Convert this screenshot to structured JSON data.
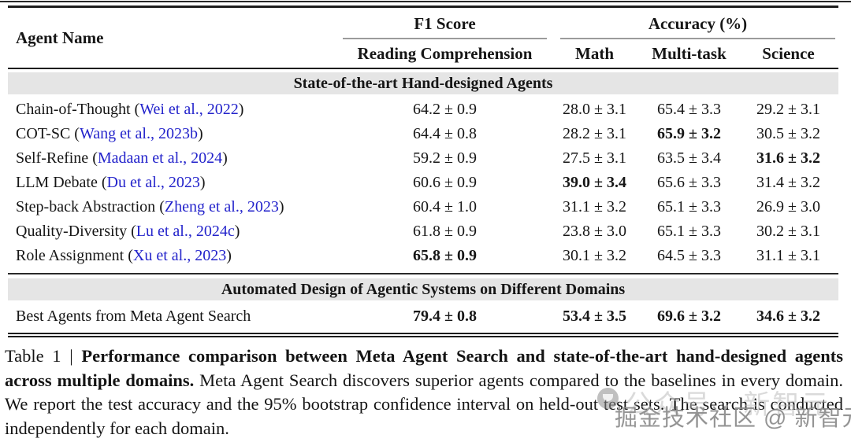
{
  "colors": {
    "citation_blue": "#2323cb",
    "section_band_gray": "#e5e5e5",
    "rule_dark": "#1d1d1d",
    "cmidrule_gray": "#9b9b9b",
    "watermark_light_gray": "#bdbdbd",
    "watermark_dark_gray": "#8c8c8c"
  },
  "table": {
    "agent_name_header": "Agent Name",
    "f1_group_header": "F1 Score",
    "accuracy_group_header": "Accuracy (%)",
    "sub_headers": {
      "reading_comprehension": "Reading Comprehension",
      "math": "Math",
      "multi_task": "Multi-task",
      "science": "Science"
    },
    "paren_open": " (",
    "paren_close": ")",
    "section1_title": "State-of-the-art Hand-designed Agents",
    "rows": [
      {
        "name": "Chain-of-Thought",
        "citation": "Wei et al., 2022",
        "cells": [
          {
            "v": "64.2 ± 0.9",
            "bold": false
          },
          {
            "v": "28.0 ± 3.1",
            "bold": false
          },
          {
            "v": "65.4 ± 3.3",
            "bold": false
          },
          {
            "v": "29.2 ± 3.1",
            "bold": false
          }
        ]
      },
      {
        "name": "COT-SC",
        "citation": "Wang et al., 2023b",
        "cells": [
          {
            "v": "64.4 ± 0.8",
            "bold": false
          },
          {
            "v": "28.2 ± 3.1",
            "bold": false
          },
          {
            "v": "65.9 ± 3.2",
            "bold": true
          },
          {
            "v": "30.5 ± 3.2",
            "bold": false
          }
        ]
      },
      {
        "name": "Self-Refine",
        "citation": "Madaan et al., 2024",
        "cells": [
          {
            "v": "59.2 ± 0.9",
            "bold": false
          },
          {
            "v": "27.5 ± 3.1",
            "bold": false
          },
          {
            "v": "63.5 ± 3.4",
            "bold": false
          },
          {
            "v": "31.6 ± 3.2",
            "bold": true
          }
        ]
      },
      {
        "name": "LLM Debate",
        "citation": "Du et al., 2023",
        "cells": [
          {
            "v": "60.6 ± 0.9",
            "bold": false
          },
          {
            "v": "39.0 ± 3.4",
            "bold": true
          },
          {
            "v": "65.6 ± 3.3",
            "bold": false
          },
          {
            "v": "31.4 ± 3.2",
            "bold": false
          }
        ]
      },
      {
        "name": "Step-back Abstraction",
        "citation": "Zheng et al., 2023",
        "cells": [
          {
            "v": "60.4 ± 1.0",
            "bold": false
          },
          {
            "v": "31.1 ± 3.2",
            "bold": false
          },
          {
            "v": "65.1 ± 3.3",
            "bold": false
          },
          {
            "v": "26.9 ± 3.0",
            "bold": false
          }
        ]
      },
      {
        "name": "Quality-Diversity",
        "citation": "Lu et al., 2024c",
        "cells": [
          {
            "v": "61.8 ± 0.9",
            "bold": false
          },
          {
            "v": "23.8 ± 3.0",
            "bold": false
          },
          {
            "v": "65.1 ± 3.3",
            "bold": false
          },
          {
            "v": "30.2 ± 3.1",
            "bold": false
          }
        ]
      },
      {
        "name": "Role Assignment",
        "citation": "Xu et al., 2023",
        "cells": [
          {
            "v": "65.8 ± 0.9",
            "bold": true
          },
          {
            "v": "30.1 ± 3.2",
            "bold": false
          },
          {
            "v": "64.5 ± 3.3",
            "bold": false
          },
          {
            "v": "31.1 ± 3.1",
            "bold": false
          }
        ]
      }
    ],
    "section2_title": "Automated Design of Agentic Systems on Different Domains",
    "final_row": {
      "name": "Best Agents from Meta Agent Search",
      "cells": [
        {
          "v": "79.4 ± 0.8",
          "bold": true
        },
        {
          "v": "53.4 ± 3.5",
          "bold": true
        },
        {
          "v": "69.6 ± 3.2",
          "bold": true
        },
        {
          "v": "34.6 ± 3.2",
          "bold": true
        }
      ]
    }
  },
  "caption": {
    "prefix": "Table 1 | ",
    "bold_part": "Performance comparison between Meta Agent Search and state-of-the-art hand-designed agents across multiple domains.",
    "rest": " Meta Agent Search discovers superior agents compared to the baselines in every domain. We report the test accuracy and the 95% bootstrap confidence interval on held-out test sets. The search is conducted independently for each domain."
  },
  "watermark": {
    "light_text": "公众号 · 新智元",
    "dark_text": "掘金技术社区 @ 新智元"
  }
}
